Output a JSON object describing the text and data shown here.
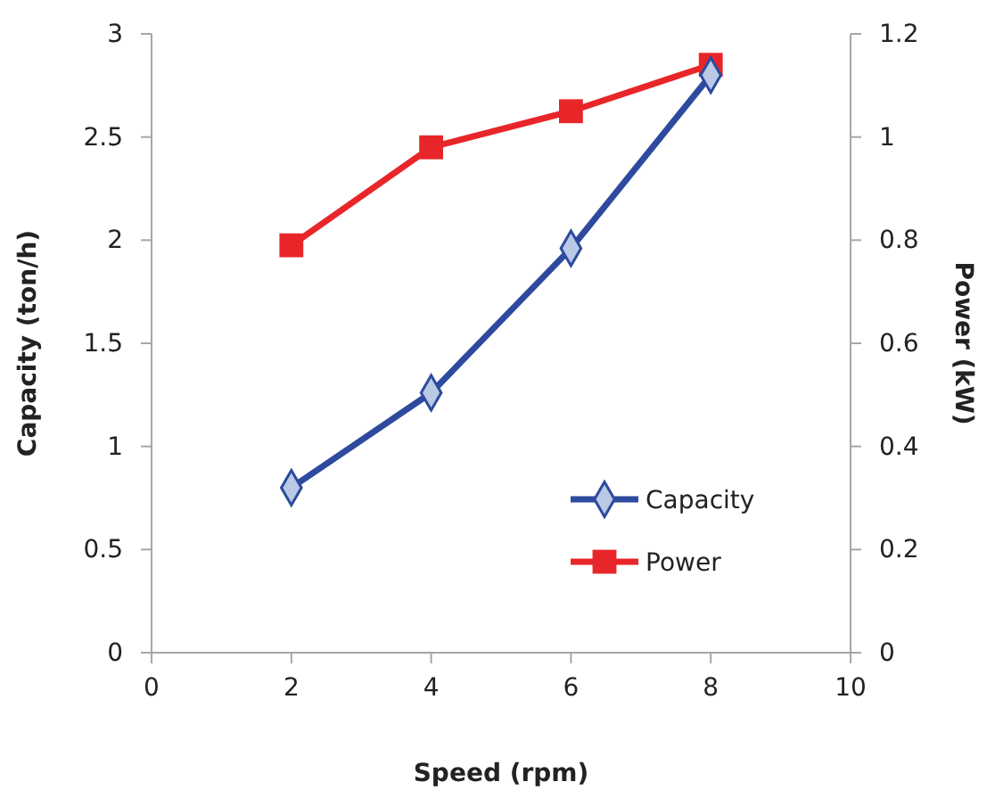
{
  "chart_data": {
    "type": "line",
    "xlabel": "Speed (rpm)",
    "ylabel": "Capacity (ton/h)",
    "y2label": "Power (kW)",
    "xlim": [
      0,
      10
    ],
    "xticks": [
      0,
      2,
      4,
      6,
      8,
      10
    ],
    "ylim": [
      0,
      3
    ],
    "yticks": [
      0,
      0.5,
      1,
      1.5,
      2,
      2.5,
      3
    ],
    "y2lim": [
      0,
      1.2
    ],
    "y2ticks": [
      0,
      0.2,
      0.4,
      0.6,
      0.8,
      1,
      1.2
    ],
    "x": [
      2,
      4,
      6,
      8
    ],
    "grid": false,
    "legend": "bottom right",
    "line_style": "solid",
    "series": [
      {
        "name": "Capacity",
        "color": "#2e4a9e",
        "marker": "diamond",
        "values": [
          0.8,
          1.26,
          1.96,
          2.8
        ]
      },
      {
        "name": "Power",
        "color": "#e8262a",
        "marker": "square",
        "axis": "y2",
        "values": [
          0.79,
          0.98,
          1.05,
          1.14
        ]
      }
    ]
  }
}
